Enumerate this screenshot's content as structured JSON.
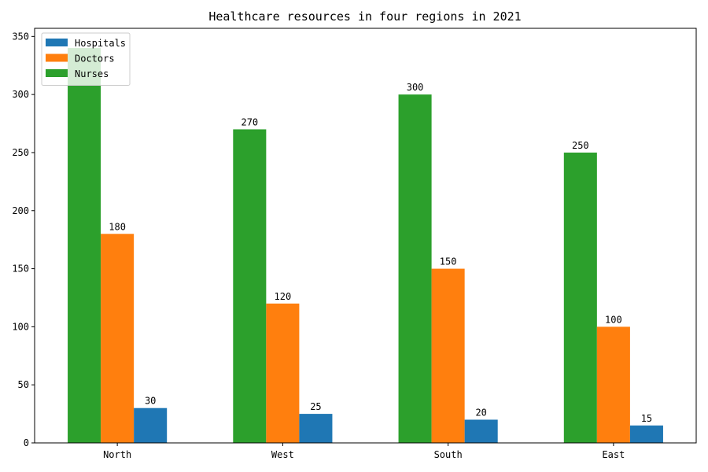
{
  "chart_data": {
    "type": "bar",
    "title": "Healthcare resources in four regions in 2021",
    "xlabel": "",
    "ylabel": "",
    "categories": [
      "North",
      "West",
      "South",
      "East"
    ],
    "ylim": [
      0,
      357
    ],
    "yticks": [
      0,
      50,
      100,
      150,
      200,
      250,
      300,
      350
    ],
    "grid": false,
    "legend_position": "top-left",
    "series": [
      {
        "name": "Nurses",
        "color": "#2ca02c",
        "values": [
          340,
          270,
          300,
          250
        ],
        "labels": [
          "",
          "270",
          "300",
          "250"
        ]
      },
      {
        "name": "Doctors",
        "color": "#ff7f0e",
        "values": [
          180,
          120,
          150,
          100
        ],
        "labels": [
          "180",
          "120",
          "150",
          "100"
        ]
      },
      {
        "name": "Hospitals",
        "color": "#1f77b4",
        "values": [
          30,
          25,
          20,
          15
        ],
        "labels": [
          "30",
          "25",
          "20",
          "15"
        ]
      }
    ],
    "legend_order": [
      "Hospitals",
      "Doctors",
      "Nurses"
    ]
  }
}
